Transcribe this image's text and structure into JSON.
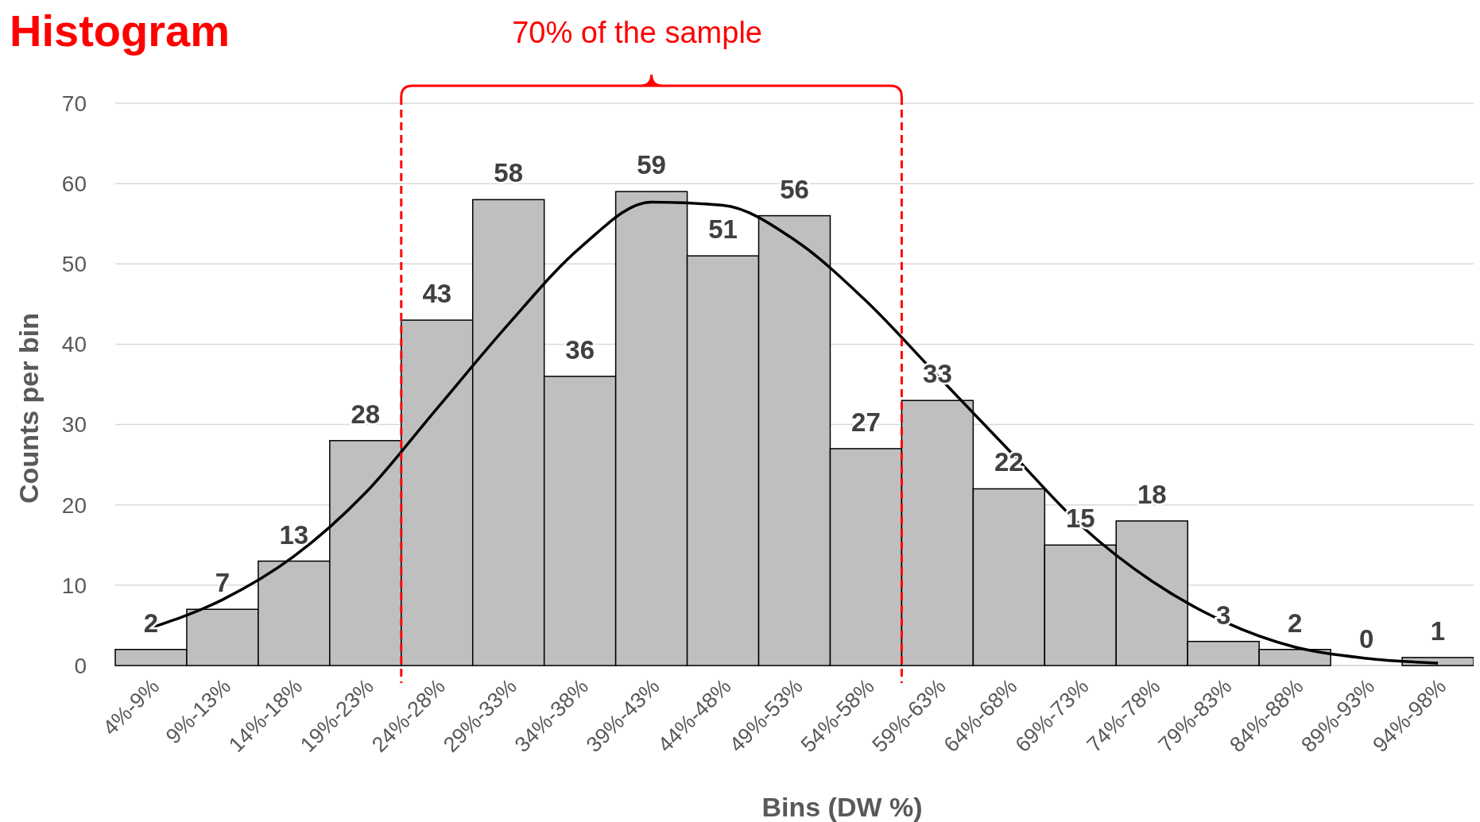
{
  "chart_data": {
    "type": "bar",
    "title": "Histogram",
    "xlabel": "Bins (DW %)",
    "ylabel": "Counts per bin",
    "categories": [
      "4%-9%",
      "9%-13%",
      "14%-18%",
      "19%-23%",
      "24%-28%",
      "29%-33%",
      "34%-38%",
      "39%-43%",
      "44%-48%",
      "49%-53%",
      "54%-58%",
      "59%-63%",
      "64%-68%",
      "69%-73%",
      "74%-78%",
      "79%-83%",
      "84%-88%",
      "89%-93%",
      "94%-98%"
    ],
    "series": [
      {
        "color": "#bfbfbf",
        "values": [
          2,
          7,
          13,
          28,
          43,
          58,
          36,
          59,
          51,
          56,
          27,
          33,
          22,
          15,
          18,
          3,
          2,
          0,
          1
        ],
        "data_labels": true
      },
      {
        "type": "line",
        "color": "#000000",
        "marker": "none",
        "line_style": "solid",
        "values": [
          4.7,
          8.2,
          13.6,
          21.5,
          32,
          42.5,
          52,
          57.7,
          57.3,
          53,
          45.4,
          36.1,
          26.8,
          17.5,
          10.5,
          5.5,
          2.3,
          0.9,
          0.3
        ]
      }
    ],
    "ylim": [
      0,
      70
    ],
    "yticks": [
      0,
      10,
      20,
      30,
      40,
      50,
      60,
      70
    ],
    "grid": "y",
    "annotations": [
      "70% of the sample"
    ]
  }
}
